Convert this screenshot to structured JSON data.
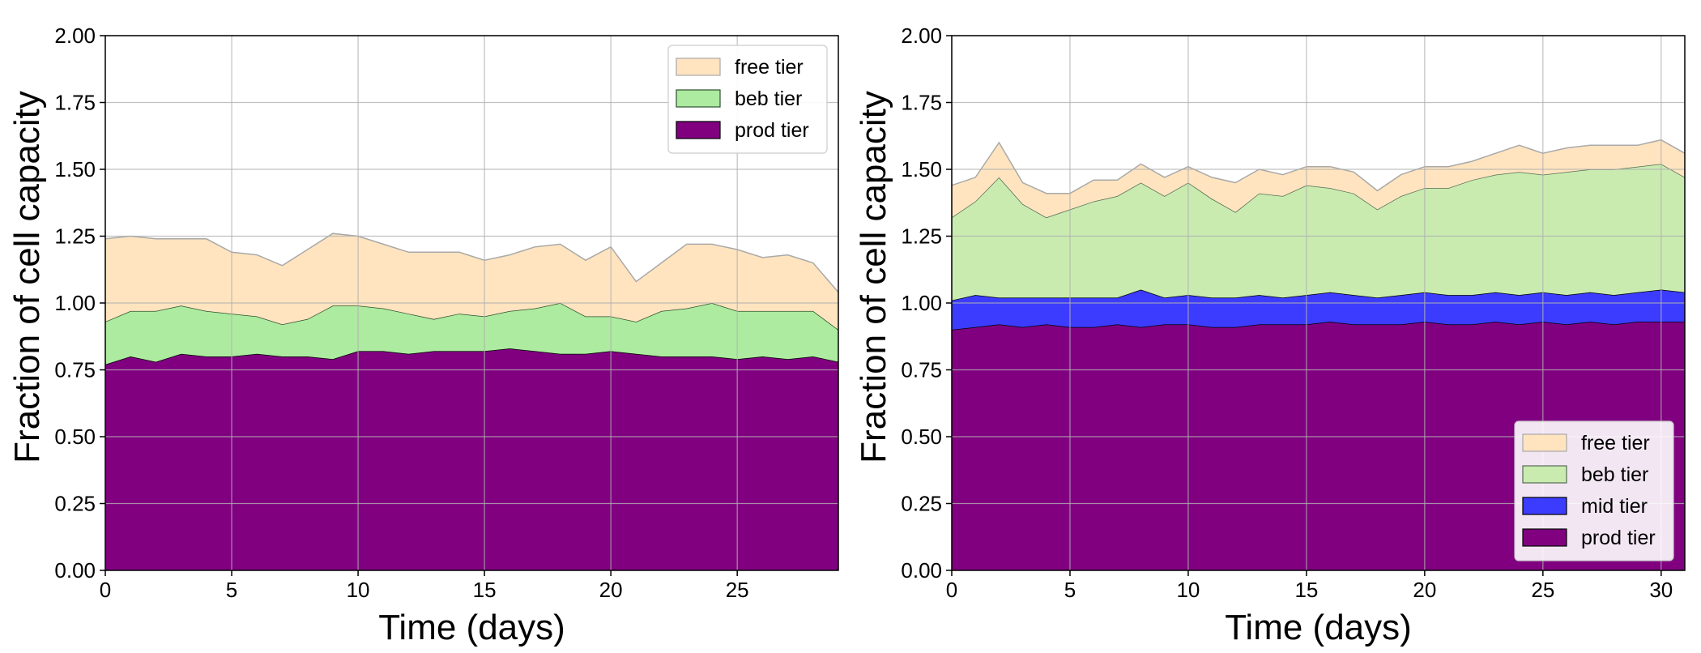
{
  "chart_data": [
    {
      "type": "area",
      "stacked": true,
      "title": "",
      "xlabel": "Time (days)",
      "ylabel": "Fraction of cell capacity",
      "xlim": [
        0,
        29
      ],
      "ylim": [
        0,
        2.0
      ],
      "xticks": [
        0,
        5,
        10,
        15,
        20,
        25
      ],
      "yticks": [
        0.0,
        0.25,
        0.5,
        0.75,
        1.0,
        1.25,
        1.5,
        1.75,
        2.0
      ],
      "ytick_labels": [
        "0.00",
        "0.25",
        "0.50",
        "0.75",
        "1.00",
        "1.25",
        "1.50",
        "1.75",
        "2.00"
      ],
      "grid": true,
      "legend_position": "top-right",
      "legend_order": [
        "free tier",
        "beb tier",
        "prod tier"
      ],
      "x": [
        0,
        1,
        2,
        3,
        4,
        5,
        6,
        7,
        8,
        9,
        10,
        11,
        12,
        13,
        14,
        15,
        16,
        17,
        18,
        19,
        20,
        21,
        22,
        23,
        24,
        25,
        26,
        27,
        28,
        29
      ],
      "series": [
        {
          "name": "prod tier",
          "color": "#800080",
          "edge": "#000000",
          "values": [
            0.77,
            0.8,
            0.78,
            0.81,
            0.8,
            0.8,
            0.81,
            0.8,
            0.8,
            0.79,
            0.82,
            0.82,
            0.81,
            0.82,
            0.82,
            0.82,
            0.83,
            0.82,
            0.81,
            0.81,
            0.82,
            0.81,
            0.8,
            0.8,
            0.8,
            0.79,
            0.8,
            0.79,
            0.8,
            0.78
          ]
        },
        {
          "name": "beb tier",
          "color": "#ADEBA0",
          "edge": "#2F4F2F",
          "values": [
            0.16,
            0.17,
            0.19,
            0.18,
            0.17,
            0.16,
            0.14,
            0.12,
            0.14,
            0.2,
            0.17,
            0.16,
            0.15,
            0.12,
            0.14,
            0.13,
            0.14,
            0.16,
            0.19,
            0.14,
            0.13,
            0.12,
            0.17,
            0.18,
            0.2,
            0.18,
            0.17,
            0.18,
            0.17,
            0.12
          ]
        },
        {
          "name": "free tier",
          "color": "#FFE4BF",
          "edge": "#A9A9A9",
          "values": [
            0.31,
            0.28,
            0.27,
            0.25,
            0.27,
            0.23,
            0.23,
            0.22,
            0.26,
            0.27,
            0.26,
            0.24,
            0.23,
            0.25,
            0.23,
            0.21,
            0.21,
            0.23,
            0.22,
            0.21,
            0.26,
            0.15,
            0.18,
            0.24,
            0.22,
            0.23,
            0.2,
            0.21,
            0.18,
            0.14
          ]
        }
      ]
    },
    {
      "type": "area",
      "stacked": true,
      "title": "",
      "xlabel": "Time (days)",
      "ylabel": "Fraction of cell capacity",
      "xlim": [
        0,
        31
      ],
      "ylim": [
        0,
        2.0
      ],
      "xticks": [
        0,
        5,
        10,
        15,
        20,
        25,
        30
      ],
      "yticks": [
        0.0,
        0.25,
        0.5,
        0.75,
        1.0,
        1.25,
        1.5,
        1.75,
        2.0
      ],
      "ytick_labels": [
        "0.00",
        "0.25",
        "0.50",
        "0.75",
        "1.00",
        "1.25",
        "1.50",
        "1.75",
        "2.00"
      ],
      "grid": true,
      "legend_position": "bottom-right",
      "legend_order": [
        "free tier",
        "beb tier",
        "mid tier",
        "prod tier"
      ],
      "x": [
        0,
        1,
        2,
        3,
        4,
        5,
        6,
        7,
        8,
        9,
        10,
        11,
        12,
        13,
        14,
        15,
        16,
        17,
        18,
        19,
        20,
        21,
        22,
        23,
        24,
        25,
        26,
        27,
        28,
        29,
        30,
        31
      ],
      "series": [
        {
          "name": "prod tier",
          "color": "#800080",
          "edge": "#000000",
          "values": [
            0.9,
            0.91,
            0.92,
            0.91,
            0.92,
            0.91,
            0.91,
            0.92,
            0.91,
            0.92,
            0.92,
            0.91,
            0.91,
            0.92,
            0.92,
            0.92,
            0.93,
            0.92,
            0.92,
            0.92,
            0.93,
            0.92,
            0.92,
            0.93,
            0.92,
            0.93,
            0.92,
            0.93,
            0.92,
            0.93,
            0.93,
            0.93
          ]
        },
        {
          "name": "mid tier",
          "color": "#3C3CFF",
          "edge": "#000000",
          "values": [
            0.11,
            0.12,
            0.1,
            0.11,
            0.1,
            0.11,
            0.11,
            0.1,
            0.14,
            0.1,
            0.11,
            0.11,
            0.11,
            0.11,
            0.1,
            0.11,
            0.11,
            0.11,
            0.1,
            0.11,
            0.11,
            0.11,
            0.11,
            0.11,
            0.11,
            0.11,
            0.11,
            0.11,
            0.11,
            0.11,
            0.12,
            0.11
          ]
        },
        {
          "name": "beb tier",
          "color": "#C9EBB0",
          "edge": "#556B55",
          "values": [
            0.31,
            0.35,
            0.45,
            0.35,
            0.3,
            0.33,
            0.36,
            0.38,
            0.4,
            0.38,
            0.42,
            0.37,
            0.32,
            0.38,
            0.38,
            0.41,
            0.39,
            0.38,
            0.33,
            0.37,
            0.39,
            0.4,
            0.43,
            0.44,
            0.46,
            0.44,
            0.46,
            0.46,
            0.47,
            0.47,
            0.47,
            0.43
          ]
        },
        {
          "name": "free tier",
          "color": "#FFE4BF",
          "edge": "#A9A9A9",
          "values": [
            0.12,
            0.09,
            0.13,
            0.08,
            0.09,
            0.06,
            0.08,
            0.06,
            0.07,
            0.07,
            0.06,
            0.08,
            0.11,
            0.09,
            0.08,
            0.07,
            0.08,
            0.08,
            0.07,
            0.08,
            0.08,
            0.08,
            0.07,
            0.08,
            0.1,
            0.08,
            0.09,
            0.09,
            0.09,
            0.08,
            0.09,
            0.09
          ]
        }
      ]
    }
  ]
}
